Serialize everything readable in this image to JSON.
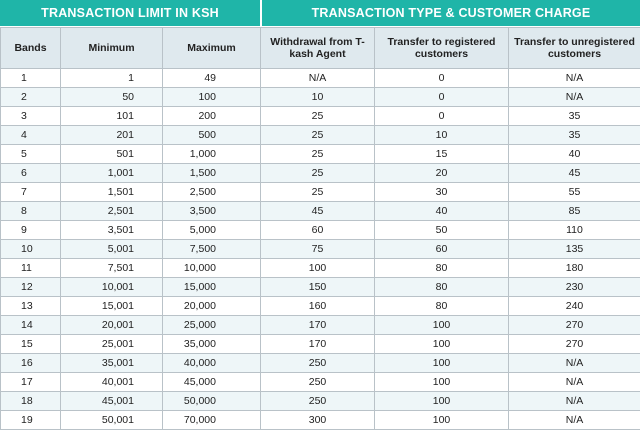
{
  "header": {
    "left_title": "TRANSACTION LIMIT IN KSH",
    "right_title": "TRANSACTION TYPE & CUSTOMER CHARGE"
  },
  "columns": [
    "Bands",
    "Minimum",
    "Maximum",
    "Withdrawal from T-kash Agent",
    "Transfer to registered customers",
    "Transfer to unregistered customers"
  ],
  "rows": [
    [
      "1",
      "1",
      "49",
      "N/A",
      "0",
      "N/A"
    ],
    [
      "2",
      "50",
      "100",
      "10",
      "0",
      "N/A"
    ],
    [
      "3",
      "101",
      "200",
      "25",
      "0",
      "35"
    ],
    [
      "4",
      "201",
      "500",
      "25",
      "10",
      "35"
    ],
    [
      "5",
      "501",
      "1,000",
      "25",
      "15",
      "40"
    ],
    [
      "6",
      "1,001",
      "1,500",
      "25",
      "20",
      "45"
    ],
    [
      "7",
      "1,501",
      "2,500",
      "25",
      "30",
      "55"
    ],
    [
      "8",
      "2,501",
      "3,500",
      "45",
      "40",
      "85"
    ],
    [
      "9",
      "3,501",
      "5,000",
      "60",
      "50",
      "110"
    ],
    [
      "10",
      "5,001",
      "7,500",
      "75",
      "60",
      "135"
    ],
    [
      "11",
      "7,501",
      "10,000",
      "100",
      "80",
      "180"
    ],
    [
      "12",
      "10,001",
      "15,000",
      "150",
      "80",
      "230"
    ],
    [
      "13",
      "15,001",
      "20,000",
      "160",
      "80",
      "240"
    ],
    [
      "14",
      "20,001",
      "25,000",
      "170",
      "100",
      "270"
    ],
    [
      "15",
      "25,001",
      "35,000",
      "170",
      "100",
      "270"
    ],
    [
      "16",
      "35,001",
      "40,000",
      "250",
      "100",
      "N/A"
    ],
    [
      "17",
      "40,001",
      "45,000",
      "250",
      "100",
      "N/A"
    ],
    [
      "18",
      "45,001",
      "50,000",
      "250",
      "100",
      "N/A"
    ],
    [
      "19",
      "50,001",
      "70,000",
      "300",
      "100",
      "N/A"
    ]
  ],
  "colors": {
    "banner": "#1fb5a8",
    "header_bg": "#dfe9ee",
    "row_alt": "#eef6f8"
  }
}
